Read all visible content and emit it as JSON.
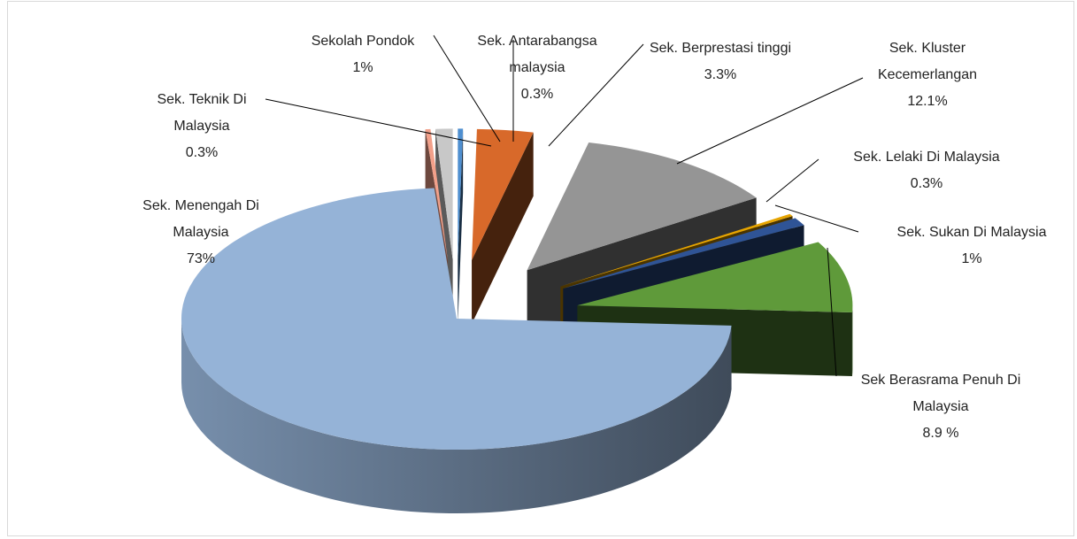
{
  "chart_data": {
    "type": "pie",
    "categories": [
      "Sek. Antarabangsa malaysia",
      "Sek. Berprestasi tinggi",
      "Sek. Kluster Kecemerlangan",
      "Sek. Lelaki Di Malaysia",
      "Sek. Sukan Di Malaysia",
      "Sek Berasrama Penuh Di Malaysia",
      "Sek. Menengah Di Malaysia",
      "Sek. Teknik Di Malaysia",
      "Sekolah Pondok"
    ],
    "values": [
      0.3,
      3.3,
      12.1,
      0.3,
      1,
      8.9,
      73,
      0.3,
      1
    ],
    "value_labels": [
      "0.3%",
      "3.3%",
      "12.1%",
      "0.3%",
      "1%",
      "8.9 %",
      "73%",
      "0.3%",
      "1%"
    ],
    "colors": [
      "#4f8fd0",
      "#d8692a",
      "#959595",
      "#e6a400",
      "#2f5496",
      "#5f9a3a",
      "#95b3d7",
      "#f2a08a",
      "#c8c8c8"
    ]
  }
}
